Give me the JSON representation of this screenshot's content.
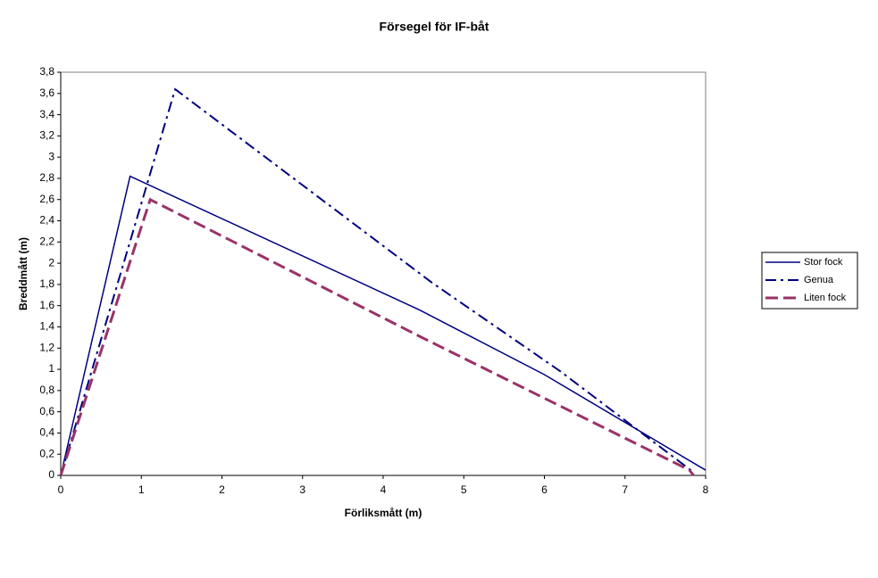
{
  "chart_data": {
    "type": "line",
    "title": "Försegel för IF-båt",
    "x_label": "Förliksmått (m)",
    "y_label": "Breddmått (m)",
    "xlim": [
      0,
      8
    ],
    "xticks": [
      0,
      1,
      2,
      3,
      4,
      5,
      6,
      7,
      8
    ],
    "ylim": [
      0,
      3.8
    ],
    "yticks": [
      0,
      {
        "value": 0.2,
        "label": "0,2"
      },
      {
        "value": 0.4,
        "label": "0,4"
      },
      {
        "value": 0.6,
        "label": "0,6"
      },
      {
        "value": 0.8,
        "label": "0,8"
      },
      1,
      {
        "value": 1.2,
        "label": "1,2"
      },
      {
        "value": 1.4,
        "label": "1,4"
      },
      {
        "value": 1.6,
        "label": "1,6"
      },
      {
        "value": 1.8,
        "label": "1,8"
      },
      2,
      {
        "value": 2.2,
        "label": "2,2"
      },
      {
        "value": 2.4,
        "label": "2,4"
      },
      {
        "value": 2.6,
        "label": "2,6"
      },
      {
        "value": 2.8,
        "label": "2,8"
      },
      3,
      {
        "value": 3.2,
        "label": "3,2"
      },
      {
        "value": 3.4,
        "label": "3,4"
      },
      {
        "value": 3.6,
        "label": "3,6"
      },
      {
        "value": 3.8,
        "label": "3,8"
      }
    ],
    "series": [
      {
        "name": "Stor fock",
        "color": "#000080",
        "dash": "solid",
        "x": [
          0,
          0.86,
          4.45,
          6.0,
          8
        ],
        "values": [
          0,
          2.82,
          1.56,
          0.95,
          0.05
        ]
      },
      {
        "name": "Genua",
        "color": "#000080",
        "dash": "dashdot",
        "x": [
          0,
          1.42,
          4.6,
          6.2,
          7.85
        ],
        "values": [
          0,
          3.64,
          1.82,
          0.98,
          0.03
        ]
      },
      {
        "name": "Liten fock",
        "color": "#993366",
        "dash": "dash",
        "x": [
          0,
          1.11,
          4.48,
          7.8,
          7.85
        ],
        "values": [
          0,
          2.6,
          1.3,
          0.05,
          0
        ]
      }
    ]
  }
}
